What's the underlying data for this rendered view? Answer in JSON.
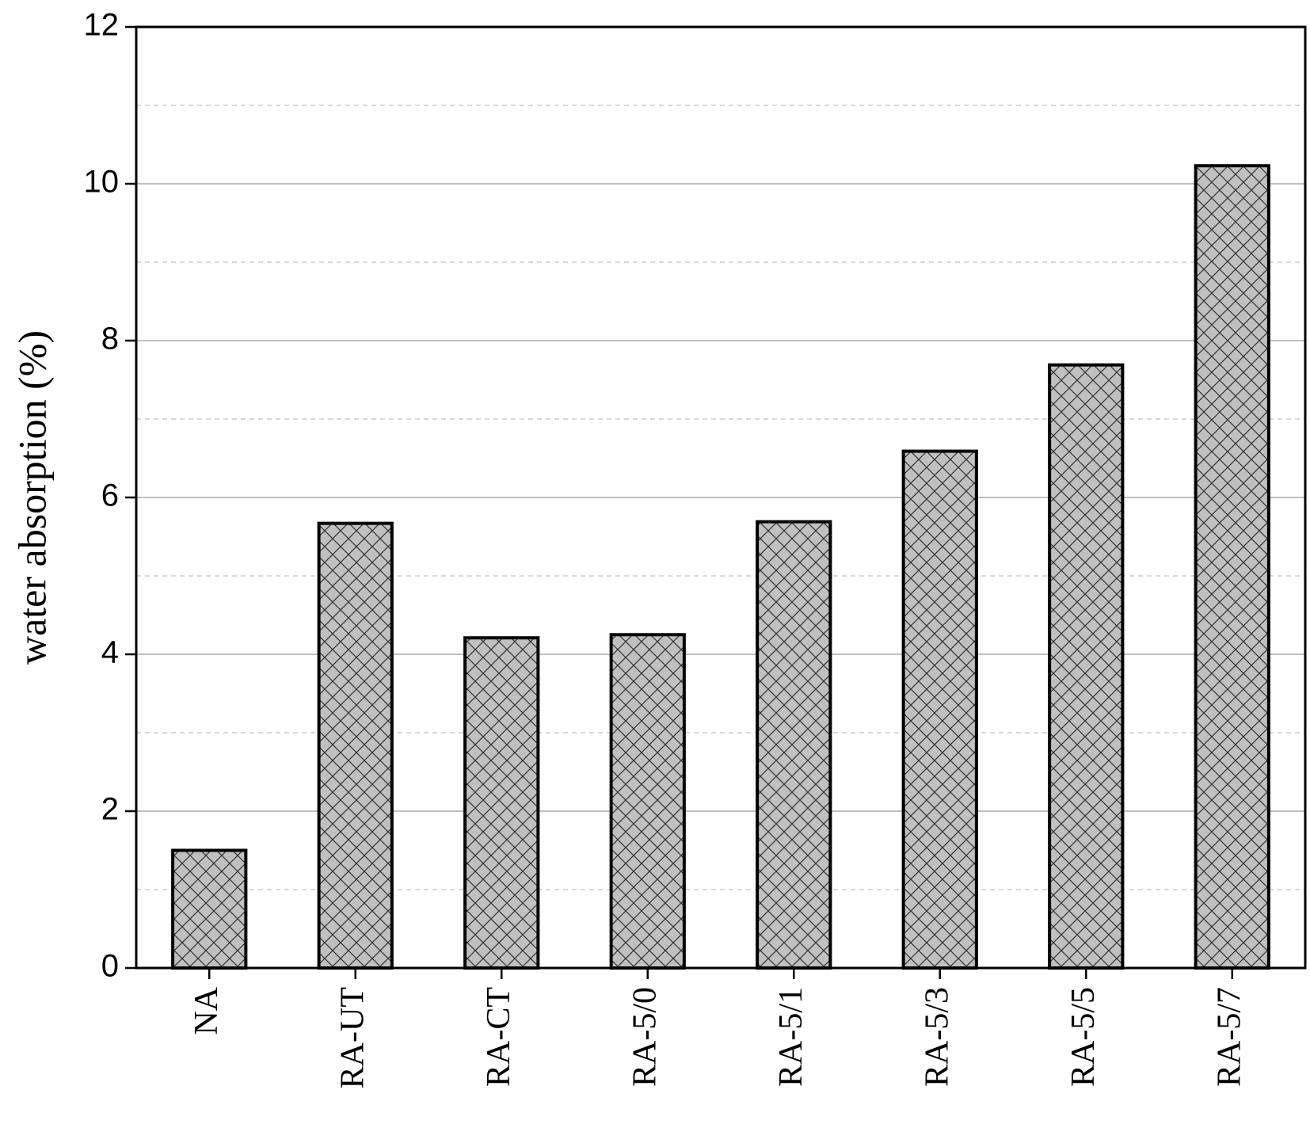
{
  "chart_data": {
    "type": "bar",
    "y_label": "water absorption (%)",
    "categories": [
      "NA",
      "RA-UT",
      "RA-CT",
      "RA-5/0",
      "RA-5/1",
      "RA-5/3",
      "RA-5/5",
      "RA-5/7"
    ],
    "values": [
      1.5,
      5.67,
      4.21,
      4.25,
      5.69,
      6.59,
      7.69,
      10.23
    ],
    "color": "#c0c0c0",
    "ylim": [
      0,
      12
    ],
    "yticks": [
      0,
      2,
      4,
      6,
      8,
      10,
      12
    ],
    "minor_yticks": [
      1,
      3,
      5,
      7,
      9,
      11
    ],
    "grid": true
  }
}
